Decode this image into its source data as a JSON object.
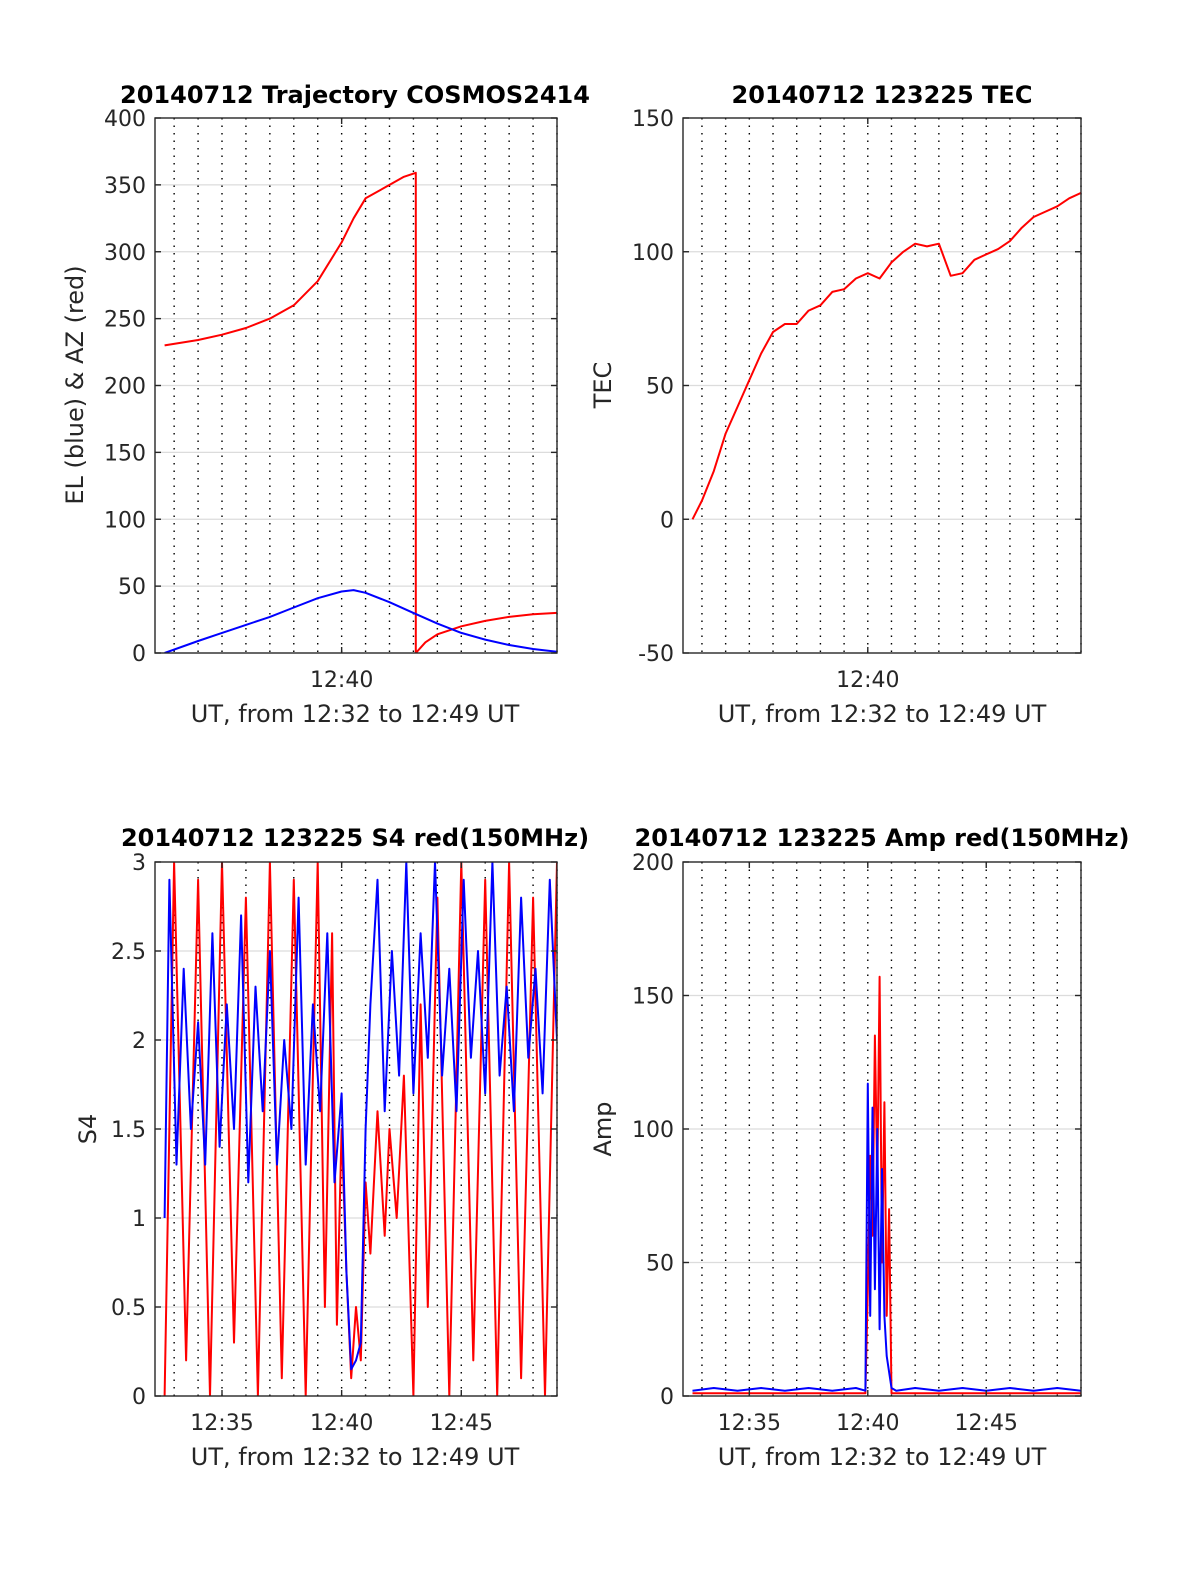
{
  "chart_data": [
    {
      "id": "trajectory",
      "type": "line",
      "title": "20140712 Trajectory COSMOS2414",
      "xlabel": "UT, from 12:32 to 12:49 UT",
      "ylabel": "EL (blue) & AZ (red)",
      "xlim_minutes_after_12h": [
        32.2,
        49.0
      ],
      "ylim": [
        0,
        400
      ],
      "yticks": [
        "0",
        "50",
        "100",
        "150",
        "200",
        "250",
        "300",
        "350",
        "400"
      ],
      "xticks": [
        {
          "value": 40,
          "label": "12:40"
        }
      ],
      "grid": true,
      "series": [
        {
          "name": "",
          "color": "#ff0000",
          "x": [
            32.6,
            34.0,
            35.0,
            36.0,
            37.0,
            38.0,
            39.0,
            40.0,
            40.5,
            41.0,
            42.0,
            42.6,
            43.1,
            43.1,
            43.5,
            44.0,
            45.0,
            46.0,
            47.0,
            48.0,
            49.0
          ],
          "y": [
            230,
            234,
            238,
            243,
            250,
            260,
            278,
            307,
            325,
            340,
            350,
            356,
            359,
            0,
            8,
            14,
            20,
            24,
            27,
            29,
            30
          ]
        },
        {
          "name": "",
          "color": "#0000ff",
          "x": [
            32.6,
            34.0,
            35.0,
            36.0,
            37.0,
            38.0,
            39.0,
            40.0,
            40.5,
            41.0,
            42.0,
            43.0,
            44.0,
            45.0,
            46.0,
            47.0,
            48.0,
            49.0
          ],
          "y": [
            0,
            9,
            15,
            21,
            27,
            34,
            41,
            46,
            47,
            45,
            38,
            30,
            22,
            15,
            10,
            6,
            3,
            1
          ]
        }
      ]
    },
    {
      "id": "tec",
      "type": "line",
      "title": "20140712 123225 TEC",
      "xlabel": "UT, from 12:32 to 12:49 UT",
      "ylabel": "TEC",
      "xlim_minutes_after_12h": [
        32.2,
        49.0
      ],
      "ylim": [
        -50,
        150
      ],
      "yticks": [
        "-50",
        "0",
        "50",
        "100",
        "150"
      ],
      "xticks": [
        {
          "value": 40,
          "label": "12:40"
        }
      ],
      "grid": true,
      "series": [
        {
          "name": "",
          "color": "#ff0000",
          "x": [
            32.6,
            33.0,
            33.5,
            34.0,
            34.5,
            35.0,
            35.5,
            36.0,
            36.5,
            37.0,
            37.5,
            38.0,
            38.5,
            39.0,
            39.5,
            40.0,
            40.5,
            41.0,
            41.5,
            42.0,
            42.5,
            43.0,
            43.5,
            44.0,
            44.5,
            45.0,
            45.5,
            46.0,
            46.5,
            47.0,
            47.5,
            48.0,
            48.5,
            49.0
          ],
          "y": [
            0,
            7,
            18,
            32,
            42,
            52,
            62,
            70,
            73,
            73,
            78,
            80,
            85,
            86,
            90,
            92,
            90,
            96,
            100,
            103,
            102,
            103,
            91,
            92,
            97,
            99,
            101,
            104,
            109,
            113,
            115,
            117,
            120,
            122
          ]
        }
      ]
    },
    {
      "id": "s4",
      "type": "line",
      "title": "20140712 123225 S4 red(150MHz)",
      "xlabel": "UT, from 12:32 to 12:49 UT",
      "ylabel": "S4",
      "xlim_minutes_after_12h": [
        32.2,
        49.0
      ],
      "ylim": [
        0,
        3
      ],
      "yticks": [
        "0",
        "0.5",
        "1",
        "1.5",
        "2",
        "2.5",
        "3"
      ],
      "xticks": [
        {
          "value": 35,
          "label": "12:35"
        },
        {
          "value": 40,
          "label": "12:40"
        },
        {
          "value": 45,
          "label": "12:45"
        }
      ],
      "grid": true,
      "series": [
        {
          "name": "",
          "color": "#ff0000",
          "x": [
            32.6,
            33.0,
            33.5,
            34.0,
            34.5,
            35.0,
            35.5,
            36.0,
            36.5,
            37.0,
            37.5,
            38.0,
            38.5,
            39.0,
            39.3,
            39.6,
            39.8,
            40.0,
            40.2,
            40.4,
            40.6,
            40.8,
            41.0,
            41.2,
            41.5,
            41.8,
            42.0,
            42.3,
            42.6,
            43.0,
            43.3,
            43.6,
            44.0,
            44.5,
            45.0,
            45.5,
            46.0,
            46.5,
            47.0,
            47.5,
            48.0,
            48.5,
            49.0
          ],
          "y": [
            0.0,
            3.0,
            0.2,
            2.9,
            0.0,
            3.0,
            0.3,
            2.8,
            0.0,
            3.0,
            0.1,
            2.9,
            0.0,
            3.0,
            0.5,
            2.6,
            0.4,
            1.5,
            0.7,
            0.1,
            0.5,
            0.2,
            1.2,
            0.8,
            1.6,
            0.9,
            1.5,
            1.0,
            1.8,
            0.0,
            2.2,
            0.5,
            2.8,
            0.0,
            3.0,
            0.2,
            2.9,
            0.0,
            3.0,
            0.1,
            2.8,
            0.0,
            3.0
          ]
        },
        {
          "name": "",
          "color": "#0000ff",
          "x": [
            32.6,
            32.8,
            33.1,
            33.4,
            33.7,
            34.0,
            34.3,
            34.6,
            34.9,
            35.2,
            35.5,
            35.8,
            36.1,
            36.4,
            36.7,
            37.0,
            37.3,
            37.6,
            37.9,
            38.2,
            38.5,
            38.8,
            39.1,
            39.4,
            39.7,
            40.0,
            40.2,
            40.4,
            40.6,
            40.8,
            41.0,
            41.2,
            41.5,
            41.8,
            42.1,
            42.4,
            42.7,
            43.0,
            43.3,
            43.6,
            43.9,
            44.2,
            44.5,
            44.8,
            45.1,
            45.4,
            45.7,
            46.0,
            46.3,
            46.6,
            46.9,
            47.2,
            47.5,
            47.8,
            48.1,
            48.4,
            48.7,
            49.0
          ],
          "y": [
            1.0,
            2.9,
            1.3,
            2.4,
            1.5,
            2.1,
            1.3,
            2.6,
            1.4,
            2.2,
            1.5,
            2.7,
            1.2,
            2.3,
            1.6,
            2.5,
            1.3,
            2.0,
            1.5,
            2.8,
            1.3,
            2.2,
            1.6,
            2.6,
            1.2,
            1.7,
            0.7,
            0.15,
            0.2,
            0.3,
            1.5,
            2.2,
            2.9,
            1.6,
            2.5,
            1.8,
            3.0,
            1.7,
            2.6,
            1.9,
            3.0,
            1.8,
            2.4,
            1.6,
            2.9,
            1.9,
            2.5,
            1.7,
            3.0,
            1.8,
            2.3,
            1.6,
            2.8,
            1.9,
            2.4,
            1.7,
            2.9,
            2.0
          ]
        }
      ]
    },
    {
      "id": "amp",
      "type": "line",
      "title": "20140712 123225 Amp red(150MHz)",
      "xlabel": "UT, from 12:32 to 12:49 UT",
      "ylabel": "Amp",
      "xlim_minutes_after_12h": [
        32.2,
        49.0
      ],
      "ylim": [
        0,
        200
      ],
      "yticks": [
        "0",
        "50",
        "100",
        "150",
        "200"
      ],
      "xticks": [
        {
          "value": 35,
          "label": "12:35"
        },
        {
          "value": 40,
          "label": "12:40"
        },
        {
          "value": 45,
          "label": "12:45"
        }
      ],
      "grid": true,
      "series": [
        {
          "name": "",
          "color": "#ff0000",
          "x": [
            32.6,
            39.9,
            40.0,
            40.1,
            40.2,
            40.3,
            40.4,
            40.5,
            40.6,
            40.7,
            40.8,
            40.9,
            41.0,
            41.2,
            49.0
          ],
          "y": [
            1,
            1,
            40,
            90,
            60,
            135,
            80,
            157,
            50,
            110,
            30,
            70,
            1,
            1,
            1
          ]
        },
        {
          "name": "",
          "color": "#0000ff",
          "x": [
            32.6,
            33.5,
            34.5,
            35.5,
            36.5,
            37.5,
            38.5,
            39.5,
            39.9,
            40.0,
            40.1,
            40.2,
            40.3,
            40.4,
            40.5,
            40.6,
            40.7,
            40.8,
            41.0,
            41.2,
            42.0,
            43.0,
            44.0,
            45.0,
            46.0,
            47.0,
            48.0,
            49.0
          ],
          "y": [
            2,
            3,
            2,
            3,
            2,
            3,
            2,
            3,
            2,
            117,
            30,
            108,
            40,
            100,
            25,
            85,
            30,
            15,
            3,
            2,
            3,
            2,
            3,
            2,
            3,
            2,
            3,
            2
          ]
        }
      ]
    }
  ]
}
